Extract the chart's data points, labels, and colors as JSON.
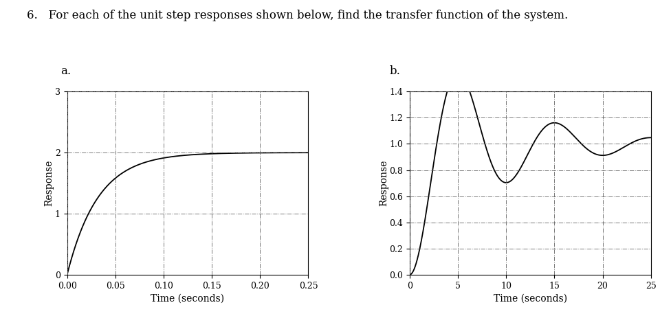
{
  "question_text": "6.   For each of the unit step responses shown below, find the transfer function of the system.",
  "label_a": "a.",
  "label_b": "b.",
  "plot_a": {
    "xlim": [
      0,
      0.25
    ],
    "ylim": [
      0,
      3
    ],
    "xticks": [
      0,
      0.05,
      0.1,
      0.15,
      0.2,
      0.25
    ],
    "yticks": [
      0,
      1,
      2,
      3
    ],
    "xlabel": "Time (seconds)",
    "ylabel": "Response",
    "time_constant": 0.032,
    "gain": 2.0
  },
  "plot_b": {
    "xlim": [
      0,
      25
    ],
    "ylim": [
      0,
      1.4
    ],
    "xticks": [
      0,
      5,
      10,
      15,
      20,
      25
    ],
    "yticks": [
      0,
      0.2,
      0.4,
      0.6,
      0.8,
      1.0,
      1.2,
      1.4
    ],
    "xlabel": "Time (seconds)",
    "ylabel": "Response",
    "wn": 0.64,
    "zeta": 0.19,
    "gain": 1.0
  },
  "line_color": "#000000",
  "grid_color": "#555555",
  "bg_color": "#ffffff",
  "font_size_question": 12,
  "font_size_label": 12,
  "font_size_tick": 9,
  "font_size_axis": 10
}
